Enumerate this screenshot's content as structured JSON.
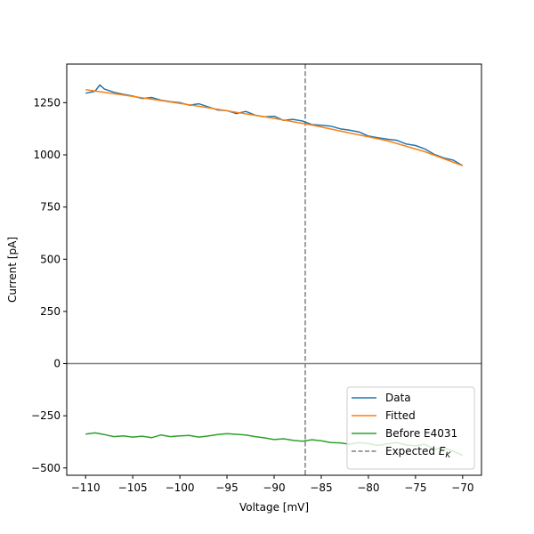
{
  "chart_data": {
    "type": "line",
    "title": "",
    "xlabel": "Voltage [mV]",
    "ylabel": "Current [pA]",
    "xlim": [
      -112,
      -68
    ],
    "ylim": [
      -535,
      1435
    ],
    "xticks": [
      -110,
      -105,
      -100,
      -95,
      -90,
      -85,
      -80,
      -75,
      -70
    ],
    "yticks": [
      -500,
      -250,
      0,
      250,
      500,
      750,
      1000,
      1250
    ],
    "xtick_labels": [
      "−110",
      "−105",
      "−100",
      "−95",
      "−90",
      "−85",
      "−80",
      "−75",
      "−70"
    ],
    "ytick_labels": [
      "−500",
      "−250",
      "0",
      "250",
      "500",
      "750",
      "1000",
      "1250"
    ],
    "grid": false,
    "legend_position": "bottom-right",
    "zero_line": {
      "y": 0,
      "color": "#808080"
    },
    "reference_line": {
      "name": "Expected E",
      "subscript": "K",
      "x": -86.7,
      "color": "#808080",
      "style": "dashed"
    },
    "series": [
      {
        "name": "Data",
        "color": "#1f77b4",
        "x": [
          -110,
          -109,
          -108.5,
          -108,
          -107,
          -106,
          -105,
          -104,
          -103,
          -102,
          -101,
          -100,
          -99,
          -98,
          -97,
          -96,
          -95,
          -94,
          -93,
          -92,
          -91,
          -90,
          -89,
          -88,
          -87,
          -86,
          -85,
          -84,
          -83,
          -82,
          -81,
          -80,
          -79,
          -78,
          -77,
          -76,
          -75,
          -74,
          -73,
          -72,
          -71,
          -70
        ],
        "y": [
          1295,
          1305,
          1335,
          1315,
          1300,
          1290,
          1282,
          1270,
          1275,
          1262,
          1255,
          1250,
          1238,
          1245,
          1230,
          1215,
          1212,
          1198,
          1208,
          1190,
          1182,
          1185,
          1165,
          1170,
          1162,
          1145,
          1142,
          1138,
          1125,
          1118,
          1110,
          1090,
          1082,
          1075,
          1070,
          1052,
          1045,
          1028,
          1002,
          985,
          975,
          948
        ]
      },
      {
        "name": "Fitted",
        "color": "#ff7f0e",
        "x": [
          -110,
          -106,
          -102,
          -98,
          -94,
          -90,
          -86,
          -82,
          -78,
          -74,
          -70
        ],
        "y": [
          1312,
          1287,
          1260,
          1233,
          1204,
          1175,
          1143,
          1105,
          1068,
          1015,
          948
        ]
      },
      {
        "name": "Before E4031",
        "color": "#2ca02c",
        "x": [
          -110,
          -109,
          -108,
          -107,
          -106,
          -105,
          -104,
          -103,
          -102,
          -101,
          -100,
          -99,
          -98,
          -97,
          -96,
          -95,
          -94,
          -93,
          -92,
          -91,
          -90,
          -89,
          -88,
          -87,
          -86,
          -85,
          -84,
          -83,
          -82,
          -81,
          -80,
          -79,
          -78,
          -77,
          -76,
          -75,
          -74,
          -73,
          -72,
          -71,
          -70
        ],
        "y": [
          -338,
          -332,
          -340,
          -350,
          -346,
          -352,
          -348,
          -355,
          -342,
          -350,
          -346,
          -344,
          -352,
          -347,
          -340,
          -336,
          -339,
          -342,
          -350,
          -356,
          -364,
          -360,
          -368,
          -372,
          -365,
          -370,
          -378,
          -380,
          -386,
          -378,
          -383,
          -392,
          -385,
          -378,
          -390,
          -394,
          -387,
          -410,
          -402,
          -420,
          -440
        ]
      }
    ]
  }
}
